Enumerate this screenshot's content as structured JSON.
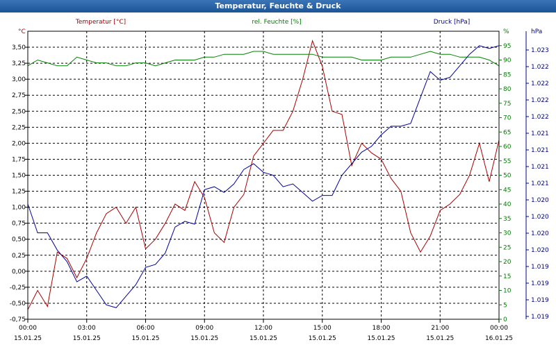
{
  "window": {
    "title": "Temperatur, Feuchte & Druck"
  },
  "chart_data": {
    "type": "line",
    "title": "Temperatur, Feuchte & Druck",
    "grid": true,
    "x": [
      "00:00",
      "00:30",
      "01:00",
      "01:30",
      "02:00",
      "02:30",
      "03:00",
      "03:30",
      "04:00",
      "04:30",
      "05:00",
      "05:30",
      "06:00",
      "06:30",
      "07:00",
      "07:30",
      "08:00",
      "08:30",
      "09:00",
      "09:30",
      "10:00",
      "10:30",
      "11:00",
      "11:30",
      "12:00",
      "12:30",
      "13:00",
      "13:30",
      "14:00",
      "14:30",
      "15:00",
      "15:30",
      "16:00",
      "16:30",
      "17:00",
      "17:30",
      "18:00",
      "18:30",
      "19:00",
      "19:30",
      "20:00",
      "20:30",
      "21:00",
      "21:30",
      "22:00",
      "22:30",
      "23:00",
      "23:30",
      "00:00"
    ],
    "x_ticks": [
      {
        "time": "00:00",
        "date": "15.01.25"
      },
      {
        "time": "03:00",
        "date": "15.01.25"
      },
      {
        "time": "06:00",
        "date": "15.01.25"
      },
      {
        "time": "09:00",
        "date": "15.01.25"
      },
      {
        "time": "12:00",
        "date": "15.01.25"
      },
      {
        "time": "15:00",
        "date": "15.01.25"
      },
      {
        "time": "18:00",
        "date": "15.01.25"
      },
      {
        "time": "21:00",
        "date": "15.01.25"
      },
      {
        "time": "00:00",
        "date": "16.01.25"
      }
    ],
    "axes": {
      "left": {
        "unit": "°C",
        "ylim": [
          -0.75,
          3.75
        ],
        "ticks": [
          "3,50",
          "3,25",
          "3,00",
          "2,75",
          "2,50",
          "2,25",
          "2,00",
          "1,75",
          "1,50",
          "1,25",
          "1,00",
          "0,75",
          "0,50",
          "0,25",
          "0,00",
          "-0,25",
          "-0,50",
          "-0,75"
        ]
      },
      "middle": {
        "unit": "%",
        "ylim": [
          0,
          100
        ],
        "ticks": [
          "95",
          "90",
          "85",
          "80",
          "75",
          "70",
          "65",
          "60",
          "55",
          "50",
          "45",
          "40",
          "35",
          "30",
          "25",
          "20",
          "15",
          "10",
          "5",
          "0"
        ]
      },
      "right": {
        "unit": "hPa",
        "ylim": [
          0,
          1
        ],
        "ticks": [
          "1.023",
          "1.022",
          "1.022",
          "1.022",
          "1.022",
          "1.021",
          "1.021",
          "1.021",
          "1.021",
          "1.020",
          "1.020",
          "1.020",
          "1.020",
          "1.019",
          "1.019",
          "1.019",
          "1.019"
        ]
      }
    },
    "series": [
      {
        "name": "Temperatur [°C]",
        "axis": "left",
        "color": "#aa0000",
        "values": [
          -0.6,
          -0.3,
          -0.55,
          0.3,
          0.2,
          -0.1,
          0.2,
          0.6,
          0.9,
          1.0,
          0.75,
          1.0,
          0.35,
          0.5,
          0.75,
          1.05,
          0.95,
          1.4,
          1.15,
          0.6,
          0.45,
          1.0,
          1.2,
          1.8,
          2.0,
          2.2,
          2.2,
          2.5,
          3.0,
          3.6,
          3.2,
          2.5,
          2.45,
          1.65,
          2.0,
          1.85,
          1.75,
          1.45,
          1.25,
          0.6,
          0.3,
          0.55,
          0.95,
          1.05,
          1.2,
          1.5,
          2.0,
          1.4,
          2.05
        ]
      },
      {
        "name": "rel. Feuchte [%]",
        "axis": "middle",
        "color": "#008000",
        "values": [
          88,
          90,
          89,
          88,
          88,
          91,
          90,
          89,
          89,
          88,
          88,
          89,
          89,
          88,
          89,
          90,
          90,
          90,
          91,
          91,
          92,
          92,
          92,
          93,
          93,
          92,
          92,
          92,
          92,
          92,
          91,
          91,
          91,
          91,
          90,
          90,
          90,
          91,
          91,
          91,
          92,
          93,
          92,
          92,
          91,
          91,
          91,
          90,
          88
        ]
      },
      {
        "name": "Druck [hPa]",
        "axis": "right",
        "color": "#0000a0",
        "values": [
          0.4,
          0.3,
          0.3,
          0.24,
          0.2,
          0.13,
          0.15,
          0.1,
          0.05,
          0.04,
          0.08,
          0.12,
          0.18,
          0.19,
          0.23,
          0.32,
          0.34,
          0.33,
          0.45,
          0.46,
          0.44,
          0.47,
          0.52,
          0.54,
          0.51,
          0.5,
          0.46,
          0.47,
          0.44,
          0.41,
          0.43,
          0.43,
          0.5,
          0.54,
          0.58,
          0.6,
          0.64,
          0.67,
          0.67,
          0.68,
          0.77,
          0.86,
          0.83,
          0.84,
          0.88,
          0.92,
          0.95,
          0.94,
          0.95
        ]
      }
    ]
  }
}
